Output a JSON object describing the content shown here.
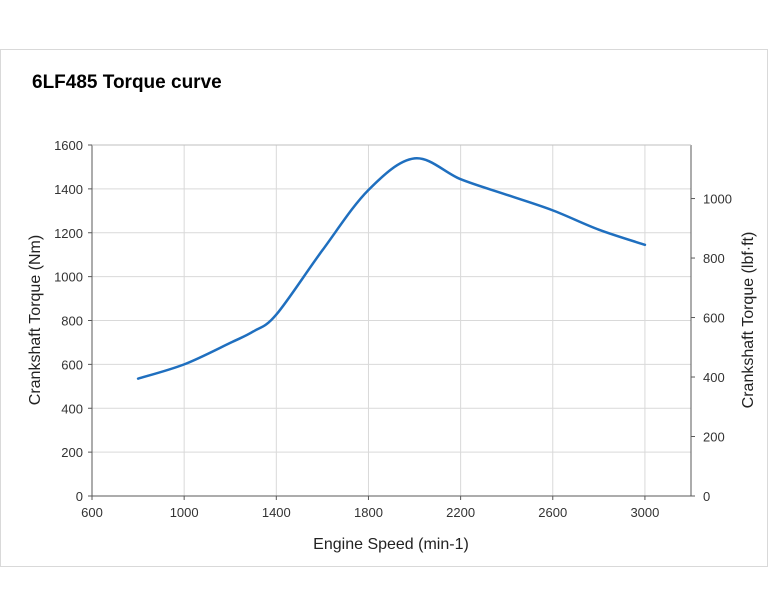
{
  "chart_data": {
    "type": "line",
    "title": "6LF485 Torque curve",
    "xlabel": "Engine Speed (min-1)",
    "ylabel": "Crankshaft Torque (Nm)",
    "y2label": "Crankshaft Torque (lbf·ft)",
    "xlim": [
      600,
      3200
    ],
    "ylim": [
      0,
      1600
    ],
    "y2lim": [
      0,
      1180
    ],
    "xticks": [
      600,
      1000,
      1400,
      1800,
      2200,
      2600,
      3000
    ],
    "yticks": [
      0,
      200,
      400,
      600,
      800,
      1000,
      1200,
      1400,
      1600
    ],
    "y2ticks": [
      0,
      200,
      400,
      600,
      800,
      1000
    ],
    "grid": true,
    "color": "#1f6fbf",
    "series": [
      {
        "name": "Torque",
        "x": [
          800,
          1000,
          1200,
          1300,
          1400,
          1600,
          1800,
          2000,
          2200,
          2400,
          2600,
          2800,
          3000
        ],
        "y": [
          535,
          600,
          698,
          750,
          827,
          1120,
          1395,
          1539,
          1444,
          1373,
          1302,
          1214,
          1145
        ]
      }
    ]
  }
}
